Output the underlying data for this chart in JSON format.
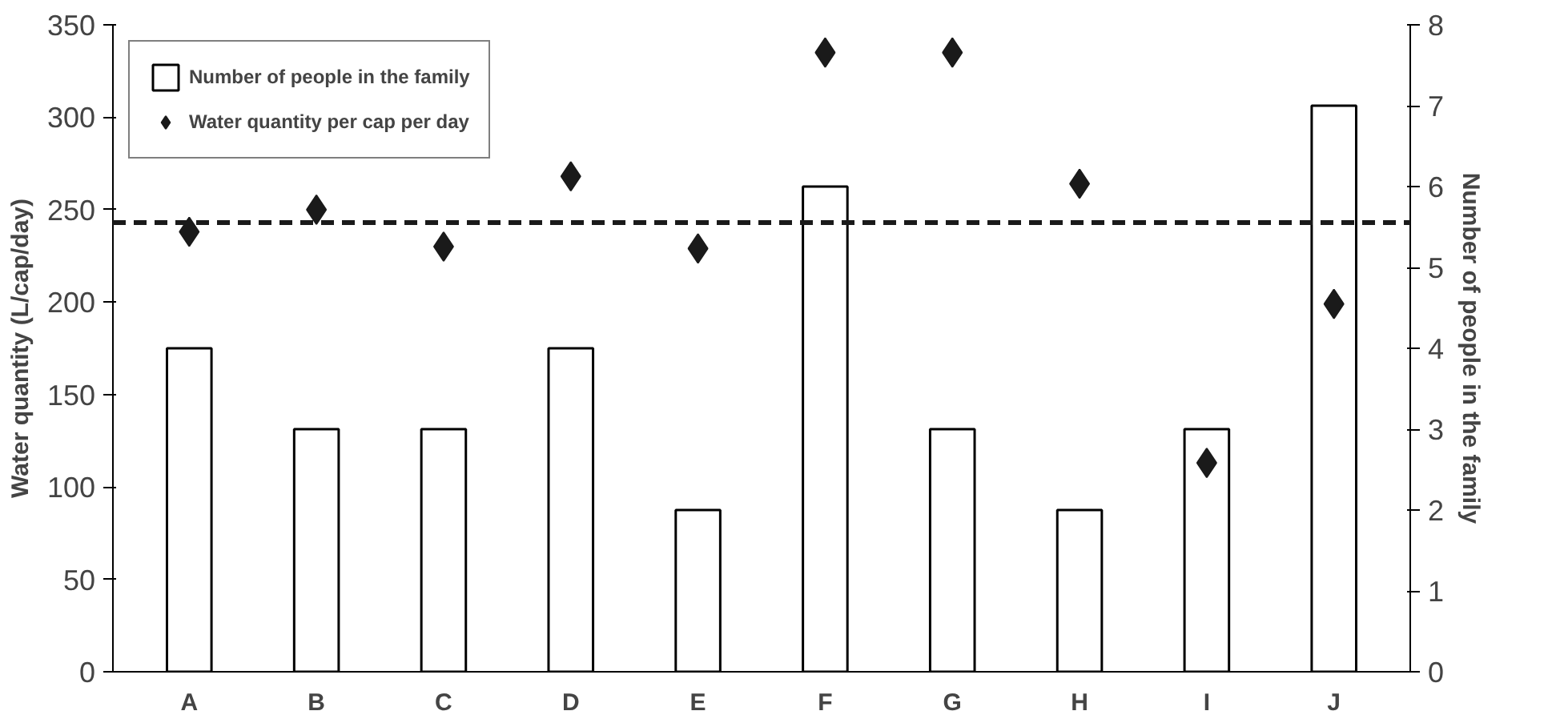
{
  "chart_data": {
    "type": "bar",
    "categories": [
      "A",
      "B",
      "C",
      "D",
      "E",
      "F",
      "G",
      "H",
      "I",
      "J"
    ],
    "ylabel": "Water quantity (L/cap/day)",
    "y2label": "Number of people in the family",
    "ylim": [
      0,
      350
    ],
    "yticks": [
      0,
      50,
      100,
      150,
      200,
      250,
      300,
      350
    ],
    "y2lim": [
      0,
      8
    ],
    "y2ticks": [
      0,
      1,
      2,
      3,
      4,
      5,
      6,
      7,
      8
    ],
    "series": [
      {
        "name": "Number of people in the family",
        "axis": "y2",
        "color": "#ffffff",
        "values": [
          4,
          3,
          3,
          4,
          2,
          6,
          3,
          2,
          3,
          7
        ]
      },
      {
        "name": "Water quantity per cap per day",
        "type": "scatter",
        "color": "#1a1a1a",
        "values": [
          238,
          250,
          230,
          268,
          229,
          335,
          335,
          264,
          113,
          199
        ]
      }
    ],
    "marker": "diamond",
    "ref_lines": [
      {
        "axis": "y",
        "value": 243,
        "color": "#1a1a1a",
        "line_style": "dashed"
      }
    ],
    "grid": false,
    "legend": "top left"
  }
}
